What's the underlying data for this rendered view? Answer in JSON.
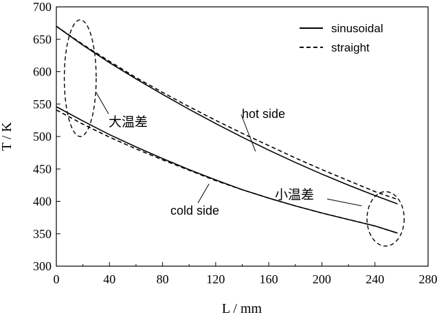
{
  "chart_data": {
    "type": "line",
    "xlabel": "L / mm",
    "ylabel": "T / K",
    "xlim": [
      0,
      280
    ],
    "ylim": [
      300,
      700
    ],
    "xticks": [
      0,
      40,
      80,
      120,
      160,
      200,
      240,
      280
    ],
    "yticks": [
      300,
      350,
      400,
      450,
      500,
      550,
      600,
      650,
      700
    ],
    "grid": false,
    "legend_position": "top-right",
    "legend": [
      {
        "label": "sinusoidal",
        "style": "solid"
      },
      {
        "label": "straight",
        "style": "dashed"
      }
    ],
    "x": [
      0,
      20,
      40,
      60,
      80,
      100,
      120,
      140,
      160,
      180,
      200,
      220,
      240,
      257
    ],
    "series": [
      {
        "name": "sinusoidal",
        "group": "hot side",
        "style": "solid",
        "values": [
          670,
          641,
          614,
          589,
          565,
          542,
          520,
          499,
          479,
          460,
          442,
          425,
          409,
          396
        ]
      },
      {
        "name": "straight",
        "group": "hot side",
        "style": "dashed",
        "values": [
          670,
          642,
          616,
          591,
          568,
          546,
          525,
          505,
          486,
          467,
          449,
          432,
          415,
          403
        ]
      },
      {
        "name": "sinusoidal",
        "group": "cold side",
        "style": "solid",
        "values": [
          546,
          524,
          503,
          484,
          466,
          449,
          433,
          418,
          405,
          393,
          382,
          372,
          362,
          351
        ]
      },
      {
        "name": "straight",
        "group": "cold side",
        "style": "dashed",
        "values": [
          541,
          519,
          499,
          481,
          464,
          448,
          432,
          418,
          405,
          393,
          382,
          372,
          362,
          351
        ]
      }
    ],
    "annotations": [
      {
        "text": "hot side",
        "x": 170,
        "y": 500
      },
      {
        "text": "cold side",
        "x": 108,
        "y": 420
      },
      {
        "text": "大温差",
        "x": 45,
        "y": 523
      },
      {
        "text": "小温差",
        "x": 232,
        "y": 397
      }
    ],
    "ellipses": [
      {
        "cx": 18,
        "cy": 590,
        "rx": 12,
        "ry": 90
      },
      {
        "cx": 248,
        "cy": 373,
        "rx": 14,
        "ry": 42
      }
    ]
  },
  "colors": {
    "axis": "#000000",
    "line": "#000000",
    "background": "#ffffff"
  }
}
